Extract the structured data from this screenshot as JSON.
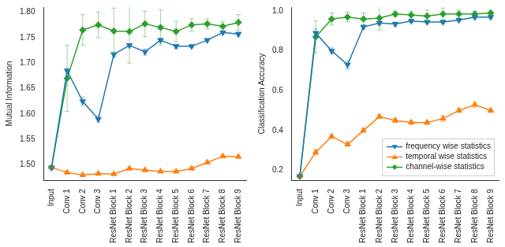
{
  "chart_data": [
    {
      "type": "line",
      "y_label": "Mutual Information",
      "categories": [
        "Input",
        "Conv 1",
        "Conv 2",
        "Conv 3",
        "ResNet Block 1",
        "ResNet Block 2",
        "ResNet Block 3",
        "ResNet Block 4",
        "ResNet Block 5",
        "ResNet Block 6",
        "ResNet Block 7",
        "ResNet Block 8",
        "ResNet Block 9"
      ],
      "ylim": [
        1.47,
        1.81
      ],
      "yticks": [
        {
          "value": 1.5,
          "label": "1.50"
        },
        1.55,
        {
          "value": 1.6,
          "label": "1.60"
        },
        1.65,
        {
          "value": 1.7,
          "label": "1.70"
        },
        1.75,
        {
          "value": 1.8,
          "label": "1.80"
        }
      ],
      "grid": false,
      "series": [
        {
          "color": "#1f77b4",
          "marker": "triangle_down",
          "values": [
            1.495,
            1.685,
            1.625,
            1.59,
            1.717,
            1.735,
            1.722,
            1.745,
            1.733,
            1.733,
            1.745,
            1.76,
            1.757
          ],
          "errors": [
            0.001,
            0.005,
            0.008,
            0.006,
            0.005,
            0.003,
            0.006,
            0.004,
            0.004,
            0.002,
            0.003,
            0.002,
            0.004
          ]
        },
        {
          "color": "#ff7f0e",
          "marker": "triangle",
          "values": [
            1.495,
            1.485,
            1.48,
            1.483,
            1.482,
            1.493,
            1.49,
            1.487,
            1.487,
            1.493,
            1.505,
            1.517,
            1.516
          ],
          "errors": [
            0.001,
            0.002,
            0.002,
            0.002,
            0.002,
            0.002,
            0.002,
            0.002,
            0.002,
            0.002,
            0.002,
            0.002,
            0.002
          ]
        },
        {
          "color": "#2ca02c",
          "marker": "diamond",
          "values": [
            1.495,
            1.67,
            1.765,
            1.775,
            1.763,
            1.762,
            1.777,
            1.77,
            1.762,
            1.775,
            1.777,
            1.772,
            1.78
          ],
          "errors": [
            0.001,
            0.065,
            0.03,
            0.025,
            0.045,
            0.062,
            0.025,
            0.035,
            0.02,
            0.012,
            0.01,
            0.01,
            0.015
          ]
        }
      ]
    },
    {
      "type": "line",
      "y_label": "Classification Accuracy",
      "categories": [
        "Input",
        "Conv 1",
        "Conv 2",
        "Conv 3",
        "ResNet Block 1",
        "ResNet Block 2",
        "ResNet Block 3",
        "ResNet Block 4",
        "ResNet Block 5",
        "ResNet Block 6",
        "ResNet Block 7",
        "ResNet Block 8",
        "ResNet Block 9"
      ],
      "ylim": [
        0.15,
        1.02
      ],
      "yticks": [
        0.2,
        0.4,
        0.6,
        0.8,
        {
          "value": 1,
          "label": "1.0"
        }
      ],
      "grid": false,
      "legend": "lower right",
      "series": [
        {
          "name": "frequency wise statistics",
          "color": "#1f77b4",
          "marker": "triangle_down",
          "values": [
            0.17,
            0.89,
            0.8,
            0.73,
            0.92,
            0.94,
            0.935,
            0.95,
            0.945,
            0.945,
            0.955,
            0.97,
            0.97
          ],
          "errors": [
            0.002,
            0.02,
            0.015,
            0.02,
            0.01,
            0.01,
            0.01,
            0.008,
            0.008,
            0.008,
            0.008,
            0.008,
            0.008
          ]
        },
        {
          "name": "temporal wise statistics",
          "color": "#ff7f0e",
          "marker": "triangle",
          "values": [
            0.17,
            0.29,
            0.37,
            0.33,
            0.4,
            0.47,
            0.45,
            0.44,
            0.44,
            0.46,
            0.5,
            0.53,
            0.5
          ],
          "errors": [
            0.005,
            0.015,
            0.01,
            0.01,
            0.01,
            0.01,
            0.01,
            0.008,
            0.01,
            0.015,
            0.01,
            0.015,
            0.01
          ]
        },
        {
          "name": "channel-wise statistics",
          "color": "#2ca02c",
          "marker": "diamond",
          "values": [
            0.17,
            0.87,
            0.96,
            0.97,
            0.96,
            0.965,
            0.985,
            0.98,
            0.975,
            0.985,
            0.985,
            0.985,
            0.99
          ],
          "errors": [
            0.002,
            0.08,
            0.03,
            0.025,
            0.03,
            0.06,
            0.015,
            0.02,
            0.03,
            0.03,
            0.02,
            0.015,
            0.015
          ]
        }
      ]
    }
  ]
}
